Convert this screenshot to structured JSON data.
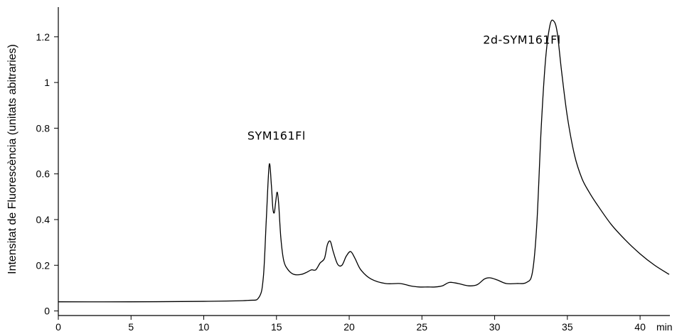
{
  "chart_data": {
    "type": "line",
    "title": "",
    "xlabel": "",
    "x_unit": "min",
    "ylabel": "Intensitat de Fluorescència (unitats abitraries)",
    "xlim": [
      0,
      42
    ],
    "ylim": [
      -0.02,
      1.33
    ],
    "x_ticks": [
      0,
      5,
      10,
      15,
      20,
      25,
      30,
      35,
      40
    ],
    "x_tick_labels": [
      "0",
      "5",
      "10",
      "15",
      "20",
      "25",
      "30",
      "35",
      "40"
    ],
    "y_ticks": [
      0,
      0.2,
      0.4,
      0.6,
      0.8,
      1,
      1.2
    ],
    "y_tick_labels": [
      "0",
      "0.2",
      "0.4",
      "0.6",
      "0.8",
      "1",
      "1.2"
    ],
    "grid": false,
    "legend": "none",
    "annotations": [
      {
        "text": "SYM161Fl",
        "x": 13.0,
        "y": 0.75
      },
      {
        "text": "2d-SYM161Fl",
        "x": 29.2,
        "y": 1.17
      }
    ],
    "series": [
      {
        "color": "#000000",
        "x": [
          0,
          5,
          10,
          13,
          13.8,
          14.1,
          14.3,
          14.5,
          14.65,
          14.75,
          14.85,
          14.95,
          15.05,
          15.15,
          15.3,
          15.5,
          15.8,
          16.2,
          16.7,
          17.1,
          17.4,
          17.7,
          18.0,
          18.3,
          18.5,
          18.7,
          18.9,
          19.2,
          19.5,
          19.8,
          20.1,
          20.4,
          20.8,
          21.5,
          22.5,
          23.5,
          24.2,
          24.8,
          25.4,
          25.9,
          26.4,
          26.9,
          27.5,
          28.2,
          28.8,
          29.3,
          29.7,
          30.2,
          30.8,
          31.5,
          32.2,
          32.6,
          32.9,
          33.2,
          33.5,
          33.8,
          34.05,
          34.3,
          34.6,
          35.0,
          35.5,
          36.0,
          36.5,
          37.0,
          38.0,
          39.0,
          40.0,
          41.0,
          42.0
        ],
        "y": [
          0.04,
          0.04,
          0.042,
          0.046,
          0.06,
          0.15,
          0.4,
          0.64,
          0.55,
          0.45,
          0.43,
          0.48,
          0.52,
          0.47,
          0.32,
          0.22,
          0.18,
          0.16,
          0.16,
          0.17,
          0.18,
          0.18,
          0.21,
          0.23,
          0.29,
          0.305,
          0.26,
          0.205,
          0.2,
          0.24,
          0.26,
          0.23,
          0.18,
          0.14,
          0.12,
          0.12,
          0.11,
          0.105,
          0.105,
          0.105,
          0.11,
          0.125,
          0.12,
          0.11,
          0.115,
          0.14,
          0.145,
          0.135,
          0.12,
          0.12,
          0.125,
          0.17,
          0.38,
          0.8,
          1.1,
          1.25,
          1.27,
          1.22,
          1.05,
          0.85,
          0.68,
          0.58,
          0.52,
          0.47,
          0.38,
          0.31,
          0.25,
          0.2,
          0.16
        ]
      }
    ]
  }
}
